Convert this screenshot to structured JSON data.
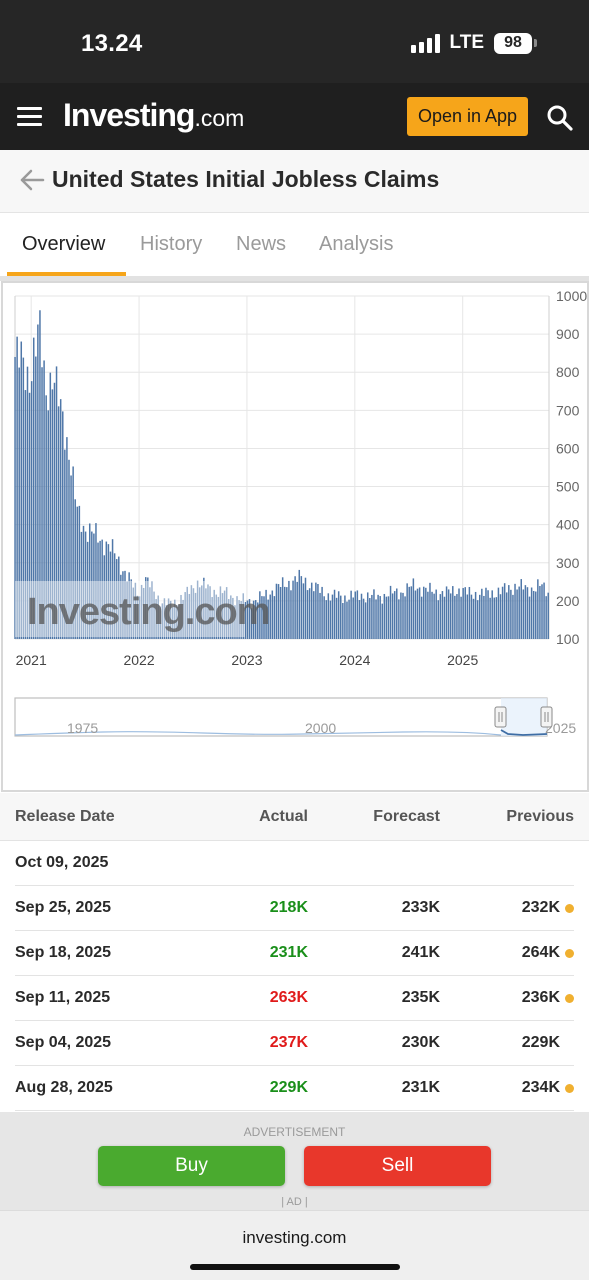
{
  "status_bar": {
    "time": "13.24",
    "network": "LTE",
    "battery": "98"
  },
  "nav": {
    "logo_main": "Investing",
    "logo_suffix": ".com",
    "open_app_label": "Open in App"
  },
  "page": {
    "title": "United States Initial Jobless Claims"
  },
  "tabs": [
    {
      "label": "Overview",
      "active": true
    },
    {
      "label": "History",
      "active": false
    },
    {
      "label": "News",
      "active": false
    },
    {
      "label": "Analysis",
      "active": false
    }
  ],
  "chart_data": {
    "type": "bar",
    "watermark": "Investing.com",
    "y_ticks": [
      "1000",
      "900",
      "800",
      "700",
      "600",
      "500",
      "400",
      "300",
      "200",
      "100"
    ],
    "ylim": [
      100,
      1000
    ],
    "x_ticks": [
      "2021",
      "2022",
      "2023",
      "2024",
      "2025"
    ],
    "xlim": [
      2020.85,
      2025.8
    ],
    "anchors": [
      [
        2020.85,
        840
      ],
      [
        2020.92,
        820
      ],
      [
        2020.98,
        790
      ],
      [
        2021.03,
        850
      ],
      [
        2021.08,
        900
      ],
      [
        2021.14,
        760
      ],
      [
        2021.2,
        780
      ],
      [
        2021.26,
        720
      ],
      [
        2021.3,
        680
      ],
      [
        2021.36,
        570
      ],
      [
        2021.42,
        440
      ],
      [
        2021.5,
        390
      ],
      [
        2021.6,
        370
      ],
      [
        2021.7,
        350
      ],
      [
        2021.78,
        320
      ],
      [
        2021.86,
        280
      ],
      [
        2021.94,
        240
      ],
      [
        2022.0,
        220
      ],
      [
        2022.05,
        260
      ],
      [
        2022.1,
        240
      ],
      [
        2022.2,
        200
      ],
      [
        2022.3,
        190
      ],
      [
        2022.45,
        220
      ],
      [
        2022.55,
        250
      ],
      [
        2022.65,
        230
      ],
      [
        2022.8,
        220
      ],
      [
        2022.95,
        200
      ],
      [
        2023.05,
        200
      ],
      [
        2023.15,
        210
      ],
      [
        2023.25,
        230
      ],
      [
        2023.4,
        250
      ],
      [
        2023.5,
        260
      ],
      [
        2023.6,
        240
      ],
      [
        2023.75,
        215
      ],
      [
        2023.9,
        210
      ],
      [
        2024.05,
        215
      ],
      [
        2024.2,
        210
      ],
      [
        2024.35,
        220
      ],
      [
        2024.45,
        225
      ],
      [
        2024.55,
        240
      ],
      [
        2024.7,
        225
      ],
      [
        2024.85,
        220
      ],
      [
        2024.95,
        230
      ],
      [
        2025.05,
        220
      ],
      [
        2025.2,
        218
      ],
      [
        2025.35,
        225
      ],
      [
        2025.5,
        240
      ],
      [
        2025.6,
        230
      ],
      [
        2025.72,
        240
      ],
      [
        2025.8,
        220
      ]
    ],
    "navigator": {
      "labels": [
        "1975",
        "2000",
        "2025"
      ]
    }
  },
  "table": {
    "headers": {
      "date": "Release Date",
      "actual": "Actual",
      "forecast": "Forecast",
      "previous": "Previous"
    },
    "rows": [
      {
        "date": "Oct 09, 2025",
        "actual": "",
        "forecast": "",
        "previous": "",
        "actual_color": "",
        "revised": false
      },
      {
        "date": "Sep 25, 2025",
        "actual": "218K",
        "forecast": "233K",
        "previous": "232K",
        "actual_color": "green",
        "revised": true
      },
      {
        "date": "Sep 18, 2025",
        "actual": "231K",
        "forecast": "241K",
        "previous": "264K",
        "actual_color": "green",
        "revised": true
      },
      {
        "date": "Sep 11, 2025",
        "actual": "263K",
        "forecast": "235K",
        "previous": "236K",
        "actual_color": "red",
        "revised": true
      },
      {
        "date": "Sep 04, 2025",
        "actual": "237K",
        "forecast": "230K",
        "previous": "229K",
        "actual_color": "red",
        "revised": false
      },
      {
        "date": "Aug 28, 2025",
        "actual": "229K",
        "forecast": "231K",
        "previous": "234K",
        "actual_color": "green",
        "revised": true
      }
    ]
  },
  "ad": {
    "label": "ADVERTISEMENT",
    "buy_label": "Buy",
    "sell_label": "Sell",
    "ad_mark": "| AD |"
  },
  "url_bar": {
    "url": "investing.com"
  },
  "colors": {
    "accent": "#f6a51a",
    "bar": "#4f77a8",
    "buy": "#4aaa2f",
    "sell": "#e8372b",
    "up": "#1a8f1a",
    "down": "#e01b1b"
  }
}
